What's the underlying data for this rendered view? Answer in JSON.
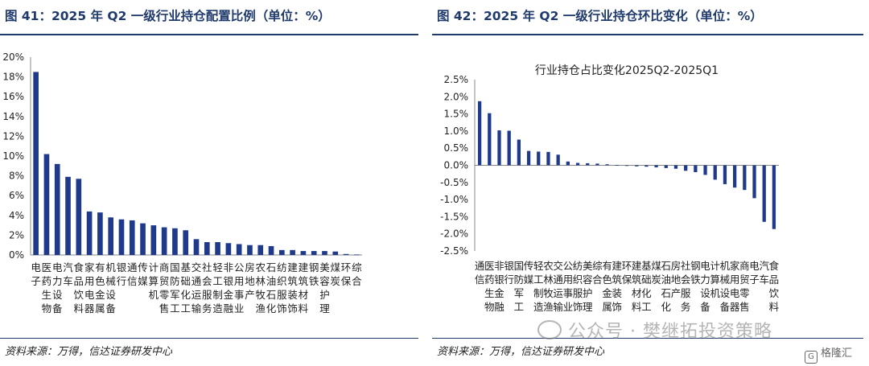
{
  "left_panel": {
    "figure_title": "图 41：2025 年 Q2 一级行业持仓配置比例（单位：%）",
    "source": "资料来源：万得，信达证券研发中心"
  },
  "right_panel": {
    "figure_title": "图 42：2025 年 Q2 一级行业持仓环比变化（单位：%）",
    "source": "资料来源：万得，信达证券研发中心"
  },
  "watermark": "公众号 · 樊继拓投资策略",
  "logo_text": "格隆汇",
  "colors": {
    "bar": "#1f3a8a",
    "rule": "#1f3a6b",
    "axis": "#888888"
  },
  "chart_data": [
    {
      "type": "bar",
      "title": "",
      "xlabel": "",
      "ylabel": "",
      "ylim": [
        0,
        20
      ],
      "yticks": [
        "0%",
        "2%",
        "4%",
        "6%",
        "8%",
        "10%",
        "12%",
        "14%",
        "16%",
        "18%",
        "20%"
      ],
      "categories": [
        "电子",
        "医药生物",
        "电力设备",
        "汽车",
        "食品饮料",
        "家用电器",
        "有色金属",
        "机械设备",
        "银行",
        "通信",
        "传媒",
        "计算机",
        "商贸零售",
        "国防军工",
        "基础化工",
        "交通运输",
        "社会服务",
        "轻工制造",
        "非银金融",
        "公用事业",
        "房地产",
        "农林牧渔",
        "石油石化",
        "纺织服饰",
        "建筑装饰",
        "建筑材料",
        "钢铁",
        "美容护理",
        "煤炭",
        "环保",
        "综合"
      ],
      "values": [
        18.5,
        10.2,
        9.2,
        7.9,
        7.7,
        4.4,
        4.3,
        3.8,
        3.6,
        3.5,
        3.2,
        3.0,
        2.8,
        2.7,
        2.5,
        1.6,
        1.3,
        1.3,
        1.2,
        1.1,
        1.0,
        1.0,
        0.9,
        0.5,
        0.5,
        0.4,
        0.4,
        0.4,
        0.35,
        0.1,
        0.05
      ]
    },
    {
      "type": "bar",
      "title": "行业持仓占比变化2025Q2-2025Q1",
      "xlabel": "",
      "ylabel": "",
      "ylim": [
        -2.5,
        2.5
      ],
      "yticks": [
        "-2.5%",
        "-2.0%",
        "-1.5%",
        "-1.0%",
        "-0.5%",
        "0.0%",
        "0.5%",
        "1.0%",
        "1.5%",
        "2.0%",
        "2.5%"
      ],
      "categories": [
        "通信",
        "医药生物",
        "非银金融",
        "银行",
        "国防军工",
        "传媒",
        "轻工制造",
        "农林牧渔",
        "交通运输",
        "公用事业",
        "纺织服饰",
        "美容护理",
        "综合",
        "有色金属",
        "建筑装饰",
        "环保",
        "建筑材料",
        "基础化工",
        "煤炭",
        "石油石化",
        "房地产",
        "社会服务",
        "钢铁",
        "电力设备",
        "计算机",
        "机械设备",
        "家用电器",
        "商贸零售",
        "电子",
        "汽车",
        "食品饮料"
      ],
      "values": [
        1.87,
        1.52,
        1.02,
        1.01,
        0.75,
        0.42,
        0.4,
        0.39,
        0.31,
        0.11,
        0.07,
        0.06,
        0.05,
        0.03,
        0.01,
        -0.01,
        -0.03,
        -0.04,
        -0.06,
        -0.08,
        -0.1,
        -0.16,
        -0.2,
        -0.28,
        -0.42,
        -0.55,
        -0.65,
        -0.72,
        -0.96,
        -1.65,
        -1.86
      ]
    }
  ]
}
